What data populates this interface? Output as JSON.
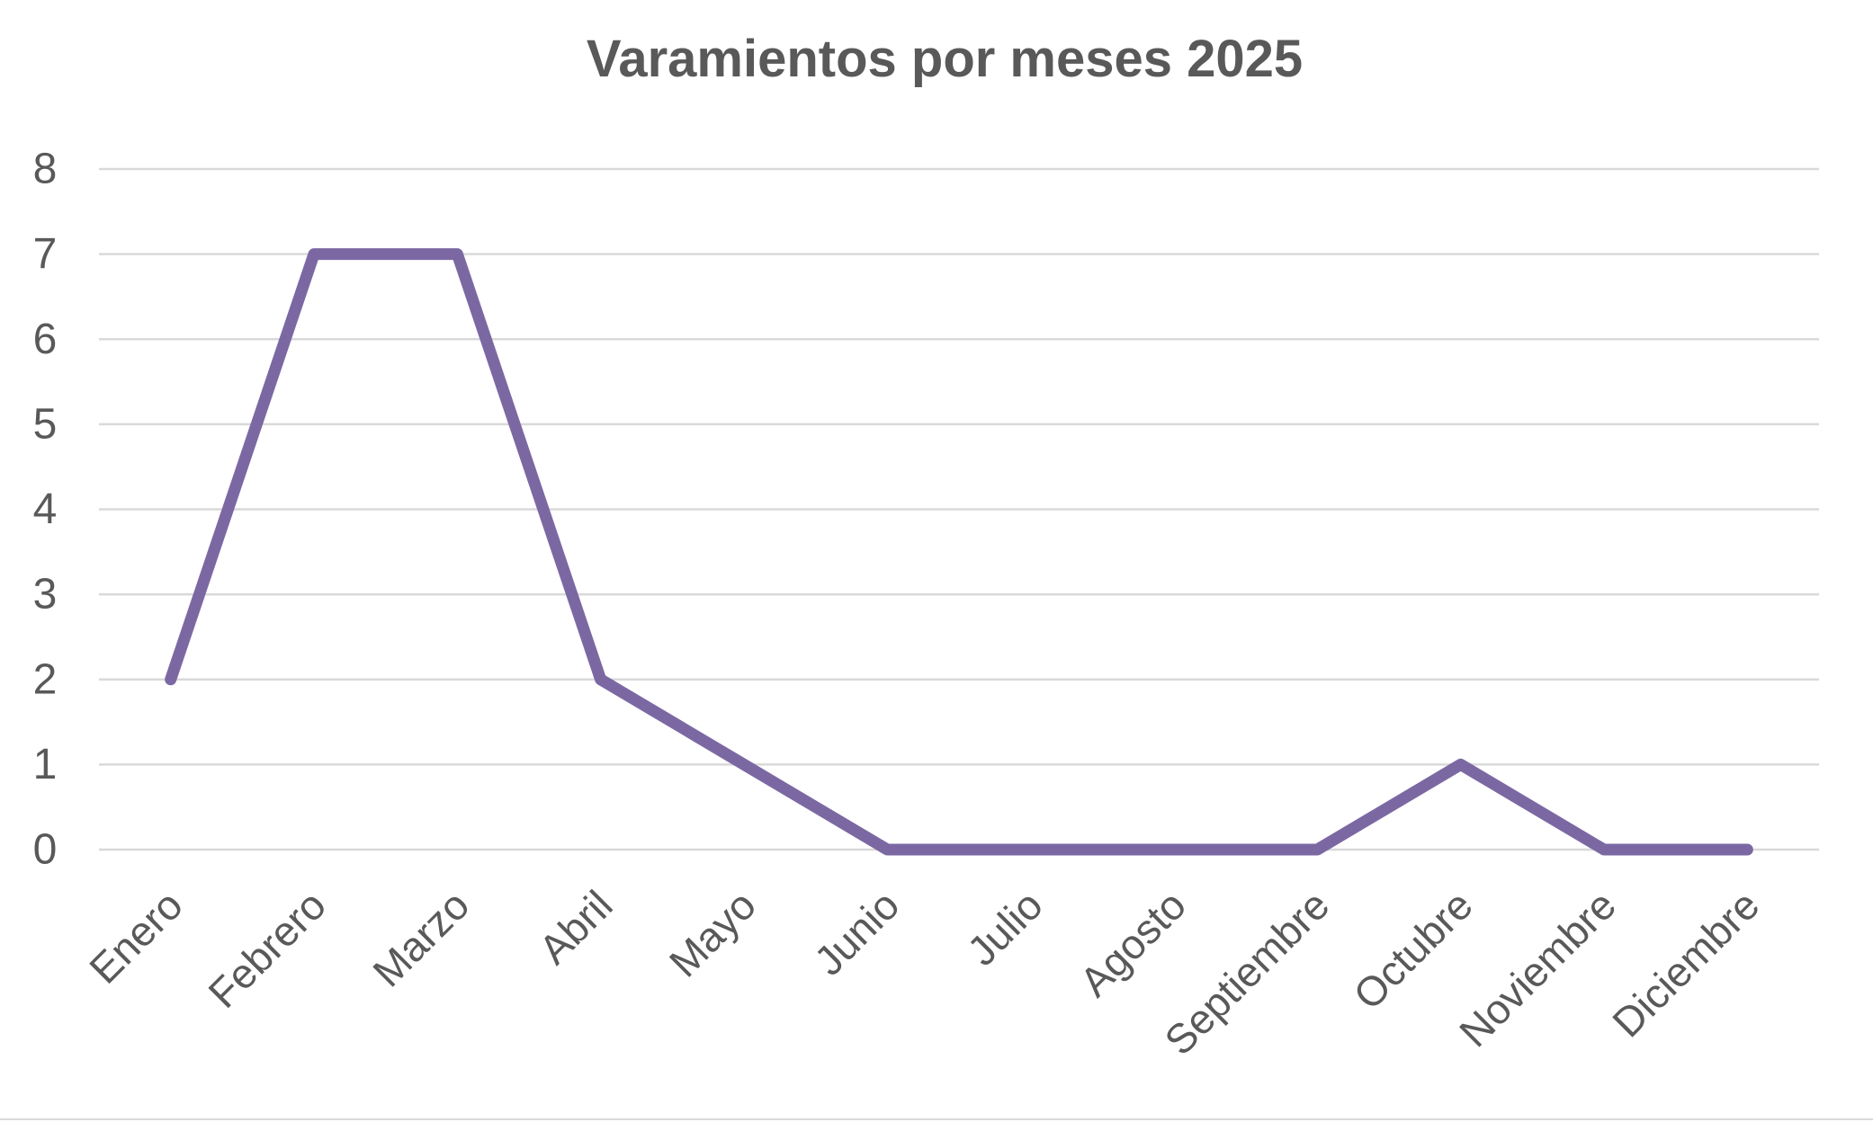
{
  "chart_data": {
    "type": "line",
    "title": "Varamientos por meses 2025",
    "categories": [
      "Enero",
      "Febrero",
      "Marzo",
      "Abril",
      "Mayo",
      "Junio",
      "Julio",
      "Agosto",
      "Septiembre",
      "Octubre",
      "Noviembre",
      "Diciembre"
    ],
    "values": [
      2,
      7,
      7,
      2,
      1,
      0,
      0,
      0,
      0,
      1,
      0,
      0
    ],
    "xlabel": "",
    "ylabel": "",
    "ylim": [
      0,
      8
    ],
    "yticks": [
      0,
      1,
      2,
      3,
      4,
      5,
      6,
      7,
      8
    ],
    "grid": "horizontal",
    "legend": "none",
    "x_label_rotation": -45,
    "colors": {
      "line": "#7B68A3",
      "gridline": "#D9D9D9",
      "text": "#595959",
      "title": "#595959",
      "background": "#FFFFFF",
      "bottom_border": "#D9D9D9"
    }
  }
}
